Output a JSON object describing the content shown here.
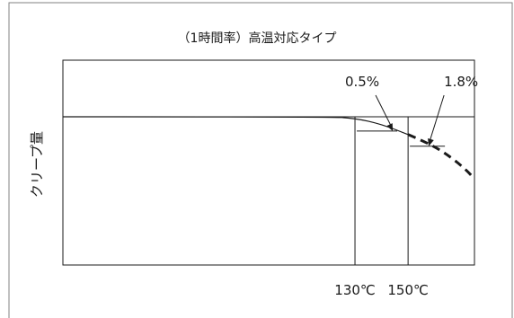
{
  "chart_data": {
    "type": "line",
    "title": "（1時間率）高温対応タイプ",
    "ylabel": "クリープ量",
    "xlabel": "",
    "y_axis_ticks": false,
    "grid": false,
    "legend": "none",
    "x_reference_lines": [
      {
        "value": 130,
        "label": "130℃"
      },
      {
        "value": 150,
        "label": "150℃"
      }
    ],
    "x_range": [
      20,
      175
    ],
    "y_range": [
      0,
      10
    ],
    "baseline_y": 10,
    "series": [
      {
        "style": "solid",
        "points": [
          [
            20,
            10
          ],
          [
            120,
            10
          ],
          [
            130,
            9.9
          ],
          [
            140,
            9.5
          ],
          [
            150,
            8.8
          ]
        ]
      },
      {
        "style": "dashed",
        "points": [
          [
            150,
            8.8
          ],
          [
            158,
            8.2
          ],
          [
            166,
            7.3
          ],
          [
            172,
            6.4
          ],
          [
            175,
            5.8
          ]
        ]
      }
    ],
    "annotations": [
      {
        "text": "0.5%",
        "at_x": 130
      },
      {
        "text": "1.8%",
        "at_x": 150
      }
    ],
    "colors": {
      "line": "#1a1a1a",
      "frame": "#7a7a7a"
    }
  }
}
